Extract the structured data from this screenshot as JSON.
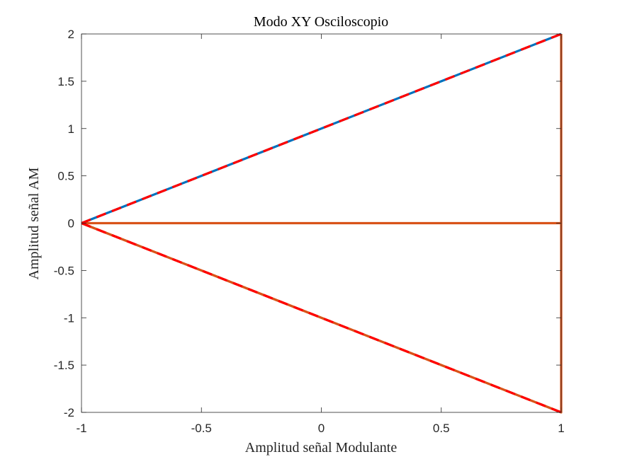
{
  "chart_data": {
    "type": "line",
    "title": "Modo XY Osciloscopio",
    "xlabel": "Amplitud señal Modulante",
    "ylabel": "Amplitud señal AM",
    "xlim": [
      -1,
      1
    ],
    "ylim": [
      -2,
      2
    ],
    "xticks": [
      -1,
      -0.5,
      0,
      0.5,
      1
    ],
    "xtick_labels": [
      "-1",
      "-0.5",
      "0",
      "0.5",
      "1"
    ],
    "yticks": [
      -2,
      -1.5,
      -1,
      -0.5,
      0,
      0.5,
      1,
      1.5,
      2
    ],
    "ytick_labels": [
      "-2",
      "-1.5",
      "-1",
      "-0.5",
      "0",
      "0.5",
      "1",
      "1.5",
      "2"
    ],
    "grid": false,
    "legend": "none",
    "series": [
      {
        "color": "#0072BD",
        "style": "solid",
        "x": [
          -1,
          1
        ],
        "y": [
          0,
          2
        ]
      },
      {
        "color": "#D95319",
        "style": "solid",
        "x": [
          -1,
          1
        ],
        "y": [
          0,
          -2
        ]
      },
      {
        "color": "#D95319",
        "style": "solid",
        "x": [
          -1,
          1,
          1,
          -1
        ],
        "y": [
          0,
          0,
          -2,
          0
        ]
      },
      {
        "color": "#D95319",
        "style": "solid",
        "x": [
          1,
          1
        ],
        "y": [
          0,
          2
        ]
      },
      {
        "color": "#FF0000",
        "style": "dashed",
        "x": [
          -1,
          1
        ],
        "y": [
          0,
          2
        ]
      },
      {
        "color": "#FF0000",
        "style": "dashed",
        "x": [
          -1,
          1
        ],
        "y": [
          0,
          -2
        ]
      }
    ]
  }
}
